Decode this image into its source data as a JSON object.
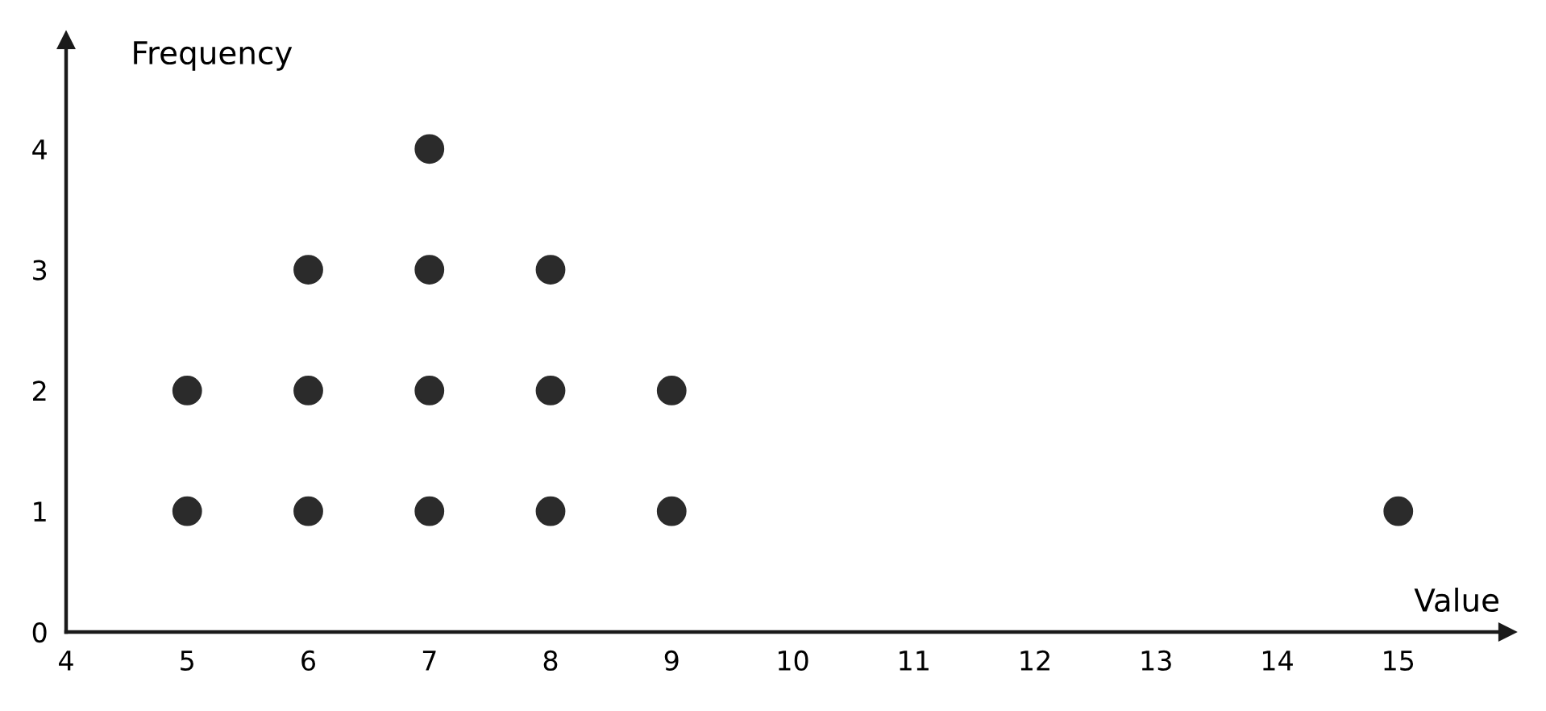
{
  "chart_data": {
    "type": "scatter",
    "xlabel": "Value",
    "ylabel": "Frequency",
    "series": [
      {
        "color": "#2b2b2b",
        "x": [
          5,
          5,
          6,
          6,
          6,
          7,
          7,
          7,
          7,
          8,
          8,
          8,
          9,
          9,
          15
        ],
        "values": [
          1,
          2,
          1,
          2,
          3,
          1,
          2,
          3,
          4,
          1,
          2,
          3,
          1,
          2,
          1
        ]
      }
    ],
    "xlim": [
      4,
      15.9
    ],
    "ylim": [
      0,
      4.9
    ],
    "xticks": [
      4,
      5,
      6,
      7,
      8,
      9,
      10,
      11,
      12,
      13,
      14,
      15
    ],
    "yticks": [
      0,
      1,
      2,
      3,
      4
    ],
    "grid": false,
    "legend": false,
    "marker": "circle"
  }
}
